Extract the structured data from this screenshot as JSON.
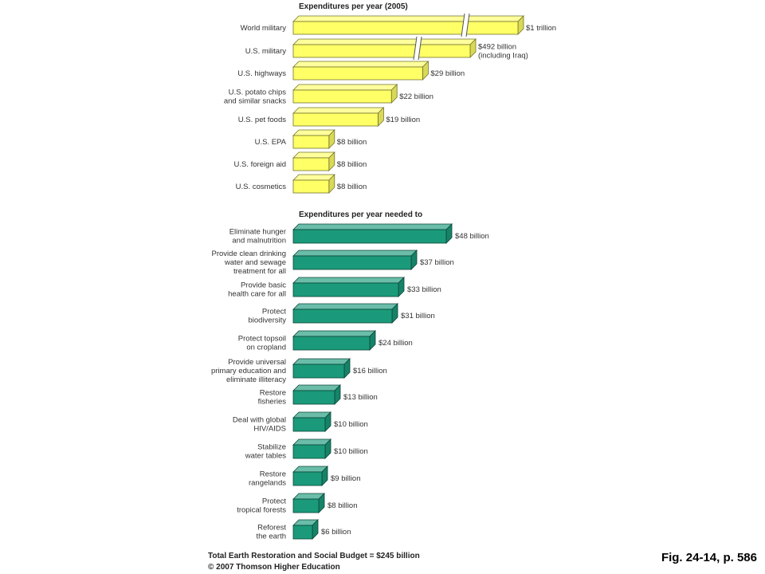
{
  "chart_data": [
    {
      "type": "bar",
      "title": "Expenditures per year (2005)",
      "unit": "billion dollars",
      "categories": [
        "World military",
        "U.S. military",
        "U.S. highways",
        "U.S. potato chips\nand similar snacks",
        "U.S. pet foods",
        "U.S. EPA",
        "U.S. foreign aid",
        "U.S. cosmetics"
      ],
      "values": [
        1000,
        492,
        29,
        22,
        19,
        8,
        8,
        8
      ],
      "value_labels": [
        "$1 trillion",
        "$492 billion\n(including Iraq)",
        "$29 billion",
        "$22 billion",
        "$19 billion",
        "$8 billion",
        "$8 billion",
        "$8 billion"
      ],
      "broken_bars": [
        0,
        1
      ],
      "color": "#ffff66"
    },
    {
      "type": "bar",
      "title": "Expenditures per year needed to",
      "unit": "billion dollars",
      "categories": [
        "Eliminate hunger\nand malnutrition",
        "Provide clean drinking\nwater and sewage\ntreatment for all",
        "Provide basic\nhealth care for all",
        "Protect\nbiodiversity",
        "Protect topsoil\non cropland",
        "Provide universal\nprimary education and\neliminate illiteracy",
        "Restore\nfisheries",
        "Deal with global\nHIV/AIDS",
        "Stabilize\nwater tables",
        "Restore\nrangelands",
        "Protect\ntropical forests",
        "Reforest\nthe earth"
      ],
      "values": [
        48,
        37,
        33,
        31,
        24,
        16,
        13,
        10,
        10,
        9,
        8,
        6
      ],
      "value_labels": [
        "$48 billion",
        "$37 billion",
        "$33 billion",
        "$31 billion",
        "$24 billion",
        "$16 billion",
        "$13 billion",
        "$10 billion",
        "$10 billion",
        "$9 billion",
        "$8 billion",
        "$6 billion"
      ],
      "color": "#1a9a7a"
    }
  ],
  "footer": {
    "total": "Total Earth Restoration and Social Budget = $245 billion",
    "copyright": "© 2007 Thomson Higher Education"
  },
  "figure_ref": "Fig. 24-14, p. 586"
}
